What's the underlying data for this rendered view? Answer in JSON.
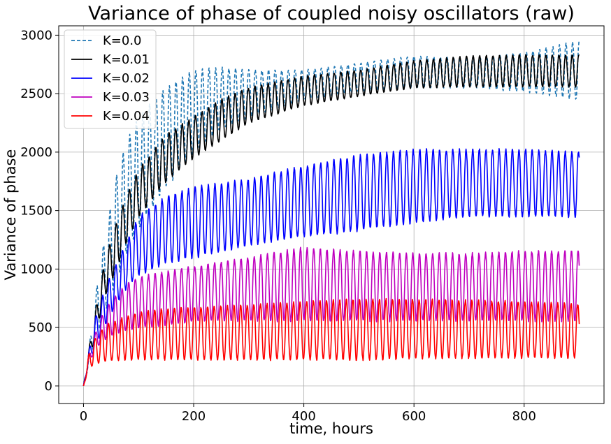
{
  "chart_data": {
    "type": "line",
    "title": "Variance of phase of coupled noisy oscillators (raw)",
    "xlabel": "time, hours",
    "ylabel": "Variance of phase",
    "xlim": [
      -45,
      945
    ],
    "ylim": [
      -150,
      3080
    ],
    "xticks": [
      0,
      200,
      400,
      600,
      800
    ],
    "yticks": [
      0,
      500,
      1000,
      1500,
      2000,
      2500,
      3000
    ],
    "grid": true,
    "legend_position": "top-left",
    "x_range": [
      0,
      900
    ],
    "oscillation_period_hours": 12,
    "series": [
      {
        "name": "K=0.0",
        "color": "#1f77b4",
        "dash": "dashed",
        "envelope_x": [
          0,
          10,
          20,
          30,
          40,
          60,
          80,
          100,
          150,
          200,
          250,
          300,
          400,
          500,
          600,
          700,
          800,
          900
        ],
        "upper": [
          0,
          320,
          700,
          1050,
          1300,
          1800,
          2100,
          2300,
          2550,
          2700,
          2720,
          2700,
          2700,
          2760,
          2820,
          2800,
          2850,
          2950
        ],
        "lower": [
          0,
          180,
          350,
          480,
          650,
          900,
          1150,
          1350,
          1700,
          2000,
          2200,
          2300,
          2450,
          2520,
          2550,
          2550,
          2520,
          2450
        ]
      },
      {
        "name": "K=0.01",
        "color": "#000000",
        "dash": "solid",
        "envelope_x": [
          0,
          10,
          20,
          30,
          40,
          60,
          80,
          100,
          150,
          200,
          250,
          300,
          400,
          500,
          600,
          700,
          800,
          900
        ],
        "upper": [
          0,
          320,
          600,
          850,
          1100,
          1400,
          1650,
          1850,
          2150,
          2300,
          2450,
          2550,
          2650,
          2700,
          2780,
          2820,
          2830,
          2830
        ],
        "lower": [
          0,
          200,
          400,
          600,
          780,
          1000,
          1250,
          1450,
          1750,
          1950,
          2100,
          2250,
          2400,
          2480,
          2550,
          2560,
          2560,
          2560
        ]
      },
      {
        "name": "K=0.02",
        "color": "#0000ff",
        "dash": "solid",
        "envelope_x": [
          0,
          10,
          20,
          30,
          40,
          60,
          80,
          100,
          150,
          200,
          250,
          300,
          400,
          500,
          600,
          700,
          800,
          900
        ],
        "upper": [
          0,
          300,
          560,
          700,
          850,
          1050,
          1250,
          1450,
          1620,
          1700,
          1730,
          1770,
          1880,
          1970,
          2020,
          2020,
          2020,
          2000
        ],
        "lower": [
          0,
          200,
          320,
          420,
          530,
          700,
          850,
          950,
          1050,
          1100,
          1150,
          1200,
          1280,
          1330,
          1400,
          1450,
          1450,
          1450
        ]
      },
      {
        "name": "K=0.03",
        "color": "#bf00bf",
        "dash": "solid",
        "envelope_x": [
          0,
          10,
          20,
          30,
          40,
          60,
          80,
          100,
          150,
          200,
          250,
          300,
          400,
          500,
          600,
          700,
          800,
          900
        ],
        "upper": [
          0,
          270,
          430,
          560,
          660,
          780,
          880,
          930,
          980,
          1020,
          1060,
          1100,
          1180,
          1150,
          1130,
          1130,
          1150,
          1150
        ],
        "lower": [
          0,
          180,
          300,
          360,
          400,
          450,
          480,
          500,
          520,
          550,
          560,
          560,
          560,
          560,
          560,
          560,
          560,
          560
        ]
      },
      {
        "name": "K=0.04",
        "color": "#ff0000",
        "dash": "solid",
        "envelope_x": [
          0,
          10,
          20,
          30,
          40,
          60,
          80,
          100,
          150,
          200,
          250,
          300,
          400,
          500,
          600,
          700,
          800,
          900
        ],
        "upper": [
          0,
          280,
          400,
          460,
          520,
          560,
          600,
          630,
          660,
          670,
          680,
          690,
          720,
          740,
          740,
          730,
          720,
          700
        ],
        "lower": [
          0,
          150,
          190,
          200,
          210,
          220,
          225,
          225,
          225,
          225,
          225,
          225,
          225,
          225,
          235,
          240,
          240,
          240
        ]
      }
    ]
  }
}
